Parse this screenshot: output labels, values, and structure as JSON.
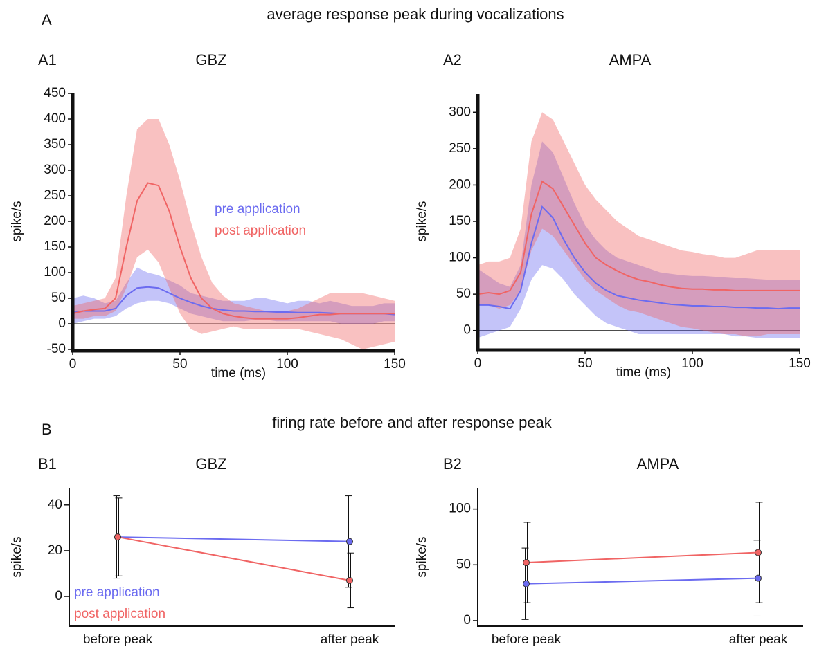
{
  "sections": [
    {
      "label": "A",
      "title": "average response peak during vocalizations"
    },
    {
      "label": "B",
      "title": "firing rate before and after response peak"
    }
  ],
  "chart_data": [
    {
      "type": "line",
      "panel": "A1",
      "title": "GBZ",
      "x_label": "time (ms)",
      "y_label": "spike/s",
      "x": [
        0,
        5,
        10,
        15,
        20,
        25,
        30,
        35,
        40,
        45,
        50,
        55,
        60,
        65,
        70,
        75,
        80,
        85,
        90,
        95,
        100,
        105,
        110,
        115,
        120,
        125,
        130,
        135,
        140,
        145,
        150
      ],
      "xlim": [
        0,
        150
      ],
      "xticks": [
        0,
        50,
        100,
        150
      ],
      "ylim": [
        -50,
        450
      ],
      "yticks": [
        -50,
        0,
        50,
        100,
        150,
        200,
        250,
        300,
        350,
        400,
        450
      ],
      "zero_line": true,
      "legend": "center-right",
      "series": [
        {
          "name": "pre application",
          "color": "#6b6bf0",
          "values": [
            22,
            25,
            25,
            25,
            30,
            55,
            70,
            72,
            70,
            60,
            50,
            42,
            35,
            30,
            27,
            25,
            25,
            24,
            24,
            23,
            23,
            22,
            22,
            22,
            21,
            20,
            20,
            20,
            20,
            20,
            18
          ],
          "lower": [
            0,
            5,
            10,
            10,
            15,
            30,
            40,
            45,
            45,
            40,
            30,
            20,
            15,
            10,
            5,
            5,
            5,
            8,
            8,
            5,
            5,
            5,
            5,
            5,
            5,
            0,
            0,
            0,
            0,
            5,
            5
          ],
          "upper": [
            50,
            55,
            50,
            40,
            45,
            80,
            110,
            100,
            95,
            85,
            75,
            60,
            55,
            50,
            45,
            45,
            45,
            50,
            50,
            45,
            40,
            45,
            45,
            40,
            45,
            40,
            35,
            35,
            35,
            40,
            40
          ]
        },
        {
          "name": "post application",
          "color": "#f06464",
          "values": [
            20,
            25,
            28,
            30,
            50,
            150,
            240,
            275,
            270,
            220,
            150,
            90,
            50,
            30,
            20,
            15,
            12,
            10,
            10,
            10,
            10,
            12,
            15,
            18,
            18,
            20,
            20,
            20,
            20,
            20,
            20
          ],
          "lower": [
            10,
            10,
            15,
            15,
            25,
            70,
            130,
            145,
            120,
            70,
            20,
            -10,
            -20,
            -15,
            -10,
            -5,
            -10,
            -10,
            -10,
            -10,
            -10,
            -10,
            -15,
            -20,
            -25,
            -30,
            -40,
            -50,
            -45,
            -40,
            -35
          ],
          "upper": [
            35,
            40,
            45,
            50,
            90,
            250,
            380,
            400,
            400,
            350,
            280,
            200,
            130,
            80,
            55,
            40,
            35,
            30,
            25,
            25,
            25,
            30,
            40,
            50,
            60,
            60,
            60,
            60,
            55,
            50,
            45
          ]
        }
      ]
    },
    {
      "type": "line",
      "panel": "A2",
      "title": "AMPA",
      "x_label": "time (ms)",
      "y_label": "spike/s",
      "x": [
        0,
        5,
        10,
        15,
        20,
        25,
        30,
        35,
        40,
        45,
        50,
        55,
        60,
        65,
        70,
        75,
        80,
        85,
        90,
        95,
        100,
        105,
        110,
        115,
        120,
        125,
        130,
        135,
        140,
        145,
        150
      ],
      "xlim": [
        0,
        150
      ],
      "xticks": [
        0,
        50,
        100,
        150
      ],
      "ylim": [
        -25,
        325
      ],
      "yticks": [
        0,
        50,
        100,
        150,
        200,
        250,
        300
      ],
      "zero_line": true,
      "series": [
        {
          "color": "#6b6bf0",
          "values": [
            35,
            35,
            33,
            30,
            55,
            120,
            170,
            155,
            125,
            100,
            80,
            65,
            55,
            48,
            45,
            42,
            40,
            38,
            36,
            35,
            34,
            34,
            33,
            33,
            32,
            32,
            31,
            31,
            30,
            31,
            31
          ],
          "lower": [
            -10,
            -5,
            0,
            5,
            30,
            70,
            90,
            85,
            70,
            50,
            35,
            20,
            10,
            5,
            0,
            -5,
            -5,
            -5,
            -5,
            -5,
            -5,
            -5,
            -5,
            -5,
            -8,
            -8,
            -10,
            -10,
            -10,
            -10,
            -10
          ],
          "upper": [
            85,
            75,
            65,
            60,
            90,
            200,
            260,
            245,
            210,
            175,
            145,
            125,
            110,
            100,
            95,
            90,
            85,
            80,
            78,
            76,
            75,
            75,
            74,
            73,
            72,
            72,
            71,
            70,
            70,
            70,
            70
          ]
        },
        {
          "color": "#f06464",
          "values": [
            50,
            52,
            50,
            55,
            80,
            160,
            205,
            195,
            170,
            145,
            120,
            100,
            90,
            82,
            75,
            70,
            67,
            63,
            60,
            58,
            57,
            57,
            56,
            56,
            55,
            55,
            55,
            55,
            55,
            55,
            55
          ],
          "lower": [
            35,
            35,
            30,
            35,
            55,
            110,
            140,
            130,
            110,
            90,
            70,
            55,
            45,
            35,
            28,
            25,
            20,
            15,
            10,
            5,
            3,
            0,
            -3,
            -5,
            -5,
            -8,
            -8,
            -5,
            -5,
            -5,
            -5
          ],
          "upper": [
            90,
            95,
            95,
            100,
            140,
            260,
            300,
            290,
            260,
            230,
            200,
            180,
            165,
            150,
            140,
            130,
            125,
            120,
            115,
            110,
            108,
            105,
            103,
            100,
            100,
            105,
            110,
            110,
            110,
            110,
            110
          ]
        }
      ]
    },
    {
      "type": "line",
      "panel": "B1",
      "title": "GBZ",
      "y_label": "spike/s",
      "categories": [
        "before peak",
        "after peak"
      ],
      "ylim": [
        -13,
        47.5
      ],
      "yticks": [
        0,
        20,
        40
      ],
      "legend": "lower-left",
      "series": [
        {
          "name": "pre application",
          "color": "#6b6bf0",
          "values": [
            26,
            24
          ],
          "errors": [
            18,
            20
          ]
        },
        {
          "name": "post application",
          "color": "#f06464",
          "values": [
            26,
            7
          ],
          "errors": [
            17,
            12
          ]
        }
      ]
    },
    {
      "type": "line",
      "panel": "B2",
      "title": "AMPA",
      "y_label": "spike/s",
      "categories": [
        "before peak",
        "after peak"
      ],
      "ylim": [
        -5,
        119
      ],
      "yticks": [
        0,
        50,
        100
      ],
      "series": [
        {
          "color": "#6b6bf0",
          "values": [
            33,
            38
          ],
          "errors": [
            32,
            34
          ]
        },
        {
          "color": "#f06464",
          "values": [
            52,
            61
          ],
          "errors": [
            36,
            45
          ]
        }
      ]
    }
  ]
}
